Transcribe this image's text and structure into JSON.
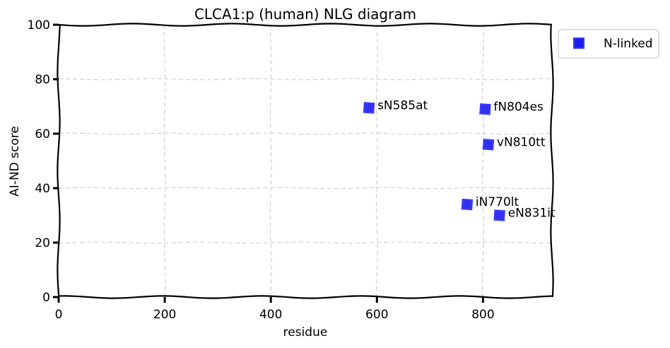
{
  "chart_data": {
    "type": "scatter",
    "title": "CLCA1:p (human) NLG diagram",
    "xlabel": "residue",
    "ylabel": "AI-ND score",
    "xlim": [
      0,
      930
    ],
    "ylim": [
      0,
      100
    ],
    "x_ticks": [
      0,
      200,
      400,
      600,
      800
    ],
    "y_ticks": [
      0,
      20,
      40,
      60,
      80,
      100
    ],
    "grid": true,
    "legend_position": "outside-top-right",
    "series": [
      {
        "name": "N-linked",
        "color": "#1a1aee",
        "marker": "square",
        "points": [
          {
            "x": 585,
            "y": 69.5,
            "label": "sN585at"
          },
          {
            "x": 804,
            "y": 69.0,
            "label": "fN804es"
          },
          {
            "x": 810,
            "y": 56.0,
            "label": "vN810tt"
          },
          {
            "x": 770,
            "y": 34.0,
            "label": "iN770lt"
          },
          {
            "x": 831,
            "y": 30.0,
            "label": "eN831it"
          }
        ]
      }
    ]
  }
}
